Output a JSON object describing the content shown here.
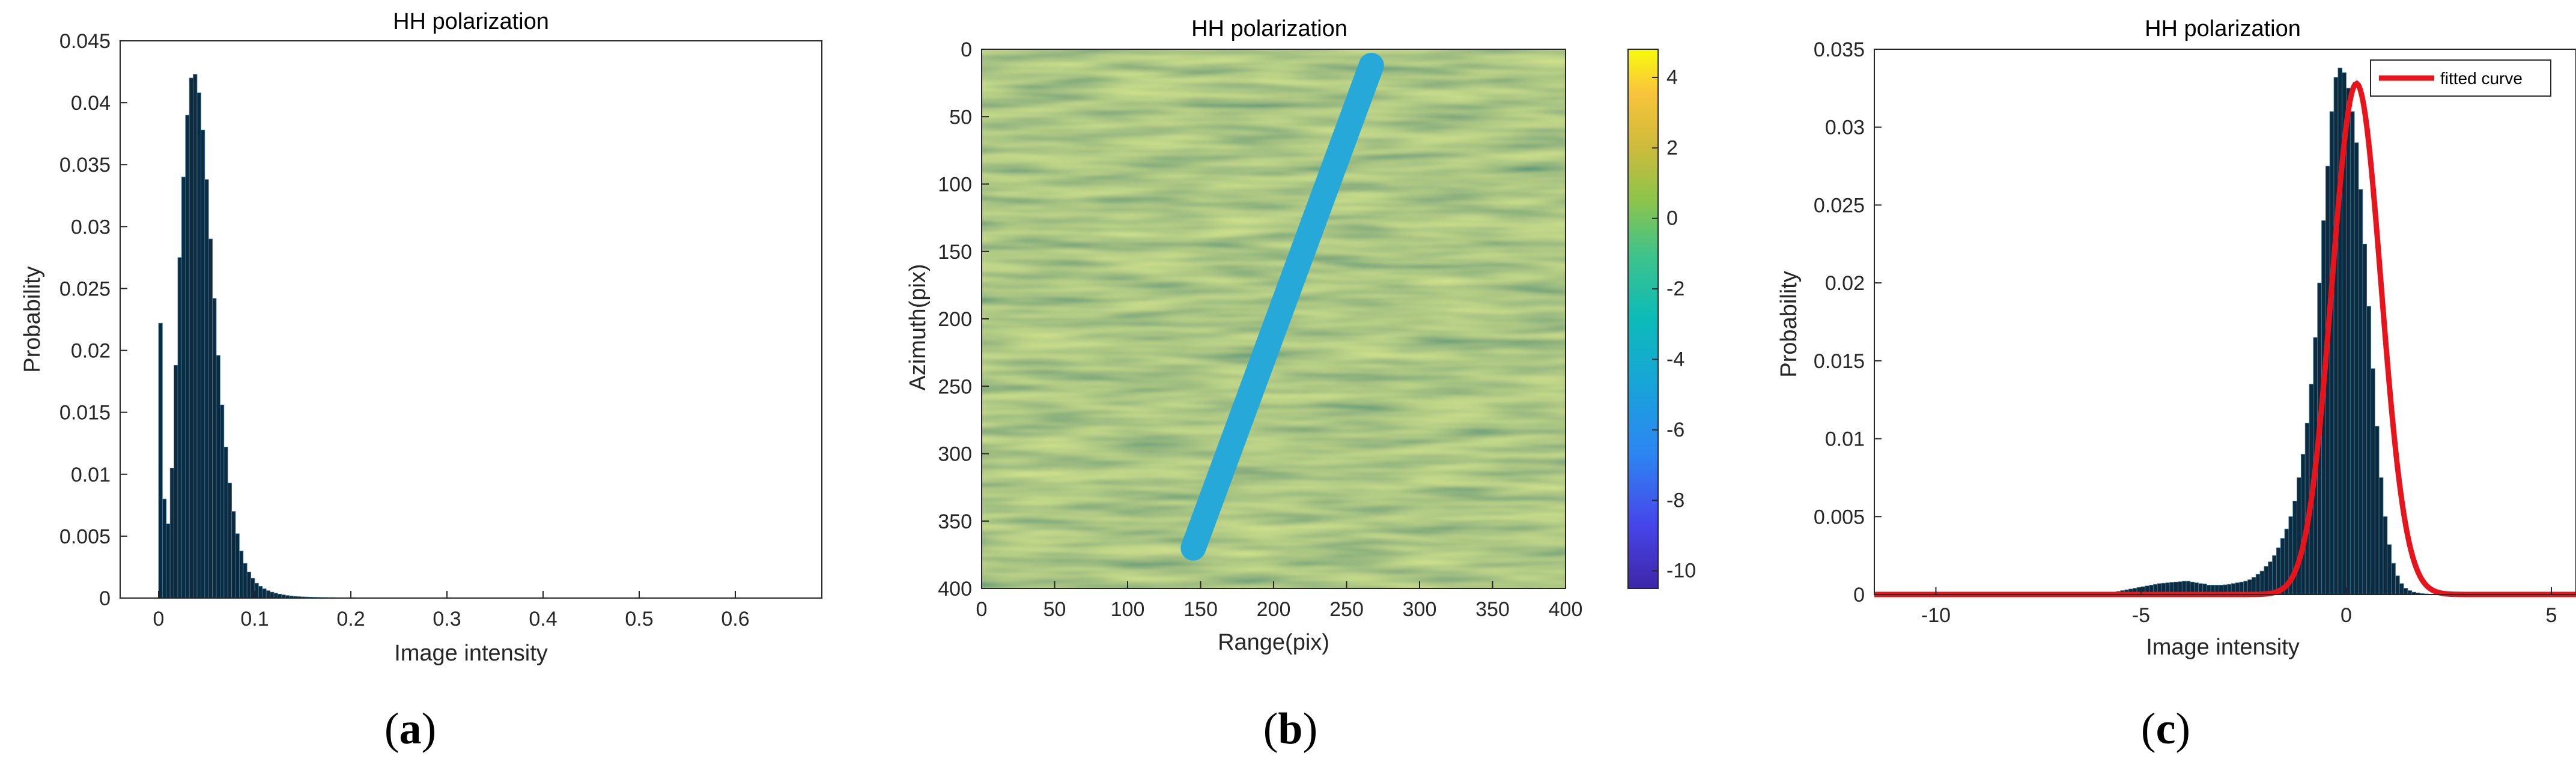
{
  "colors": {
    "bar": "#0d2a3e",
    "fit": "#e8141b",
    "axis": "#262626",
    "background": "#ffffff"
  },
  "captions": {
    "a": "a",
    "b": "b",
    "c": "c"
  },
  "chart_data": [
    {
      "id": "a",
      "type": "bar",
      "title": "HH polarization",
      "xlabel": "Image intensity",
      "ylabel": "Probability",
      "xlim": [
        -0.04,
        0.69
      ],
      "ylim": [
        0,
        0.045
      ],
      "xticks": [
        0,
        0.1,
        0.2,
        0.3,
        0.4,
        0.5,
        0.6
      ],
      "xtick_labels": [
        "0",
        "0.1",
        "0.2",
        "0.3",
        "0.4",
        "0.5",
        "0.6"
      ],
      "yticks": [
        0,
        0.005,
        0.01,
        0.015,
        0.02,
        0.025,
        0.03,
        0.035,
        0.04,
        0.045
      ],
      "ytick_labels": [
        "0",
        "0.005",
        "0.01",
        "0.015",
        "0.02",
        "0.025",
        "0.03",
        "0.035",
        "0.04",
        "0.045"
      ],
      "bin_width": 0.004,
      "bin_starts": [
        0.0,
        0.004,
        0.008,
        0.012,
        0.016,
        0.02,
        0.024,
        0.028,
        0.032,
        0.036,
        0.04,
        0.044,
        0.048,
        0.052,
        0.056,
        0.06,
        0.064,
        0.068,
        0.072,
        0.076,
        0.08,
        0.084,
        0.088,
        0.092,
        0.096,
        0.1,
        0.104,
        0.108,
        0.112,
        0.116,
        0.12,
        0.124,
        0.128,
        0.132,
        0.136,
        0.14,
        0.144,
        0.148,
        0.152,
        0.156,
        0.16,
        0.164,
        0.168,
        0.172,
        0.176,
        0.18,
        0.184,
        0.188,
        0.192,
        0.196,
        0.2,
        0.204,
        0.208,
        0.212,
        0.216,
        0.22,
        0.224,
        0.228
      ],
      "values": [
        0.0222,
        0.008,
        0.006,
        0.0105,
        0.0188,
        0.0275,
        0.034,
        0.039,
        0.042,
        0.0423,
        0.0408,
        0.0378,
        0.0338,
        0.029,
        0.0242,
        0.0196,
        0.0156,
        0.0122,
        0.0093,
        0.007,
        0.0052,
        0.0038,
        0.0028,
        0.0021,
        0.0016,
        0.0012,
        0.00095,
        0.00075,
        0.0006,
        0.00048,
        0.00039,
        0.00032,
        0.00026,
        0.00021,
        0.00017,
        0.00014,
        0.00012,
        0.0001,
        9e-05,
        8e-05,
        7e-05,
        6e-05,
        5e-05,
        5e-05,
        4e-05,
        4e-05,
        3e-05,
        3e-05,
        3e-05,
        2e-05,
        2e-05,
        2e-05,
        2e-05,
        1e-05,
        1e-05,
        1e-05,
        1e-05,
        1e-05
      ]
    },
    {
      "id": "b",
      "type": "heatmap",
      "title": "HH polarization",
      "xlabel": "Range(pix)",
      "ylabel": "Azimuth(pix)",
      "xlim": [
        0,
        400
      ],
      "ylim": [
        0,
        400
      ],
      "xticks": [
        0,
        50,
        100,
        150,
        200,
        250,
        300,
        350,
        400
      ],
      "xtick_labels": [
        "0",
        "50",
        "100",
        "150",
        "200",
        "250",
        "300",
        "350",
        "400"
      ],
      "yticks": [
        0,
        50,
        100,
        150,
        200,
        250,
        300,
        350,
        400
      ],
      "ytick_labels": [
        "0",
        "50",
        "100",
        "150",
        "200",
        "250",
        "300",
        "350",
        "400"
      ],
      "colorbar": {
        "range": [
          -10.5,
          4.8
        ],
        "ticks": [
          4,
          2,
          0,
          -2,
          -4,
          -6,
          -8,
          -10
        ],
        "tick_labels": [
          "4",
          "2",
          "0",
          "-2",
          "-4",
          "-6",
          "-8",
          "-10"
        ]
      },
      "background_value": 0,
      "annotations": [
        {
          "name": "ship-wake-track",
          "from": [
            267,
            12
          ],
          "to": [
            145,
            370
          ],
          "value": -4.2
        }
      ]
    },
    {
      "id": "c",
      "type": "bar",
      "title": "HH polarization",
      "xlabel": "Image intensity",
      "ylabel": "Probability",
      "xlim": [
        -11.5,
        5.6
      ],
      "ylim": [
        0,
        0.035
      ],
      "xticks": [
        -10,
        -5,
        0,
        5
      ],
      "xtick_labels": [
        "-10",
        "-5",
        "0",
        "5"
      ],
      "yticks": [
        0,
        0.005,
        0.01,
        0.015,
        0.02,
        0.025,
        0.03,
        0.035
      ],
      "ytick_labels": [
        "0",
        "0.005",
        "0.01",
        "0.015",
        "0.02",
        "0.025",
        "0.03",
        "0.035"
      ],
      "legend": {
        "entries": [
          "fitted curve"
        ],
        "location": "top-right"
      },
      "bin_width": 0.1,
      "bin_starts": [
        -6.0,
        -5.9,
        -5.8,
        -5.7,
        -5.6,
        -5.5,
        -5.4,
        -5.3,
        -5.2,
        -5.1,
        -5.0,
        -4.9,
        -4.8,
        -4.7,
        -4.6,
        -4.5,
        -4.4,
        -4.3,
        -4.2,
        -4.1,
        -4.0,
        -3.9,
        -3.8,
        -3.7,
        -3.6,
        -3.5,
        -3.4,
        -3.3,
        -3.2,
        -3.1,
        -3.0,
        -2.9,
        -2.8,
        -2.7,
        -2.6,
        -2.5,
        -2.4,
        -2.3,
        -2.2,
        -2.1,
        -2.0,
        -1.9,
        -1.8,
        -1.7,
        -1.6,
        -1.5,
        -1.4,
        -1.3,
        -1.2,
        -1.1,
        -1.0,
        -0.9,
        -0.8,
        -0.7,
        -0.6,
        -0.5,
        -0.4,
        -0.3,
        -0.2,
        -0.1,
        0.0,
        0.1,
        0.2,
        0.3,
        0.4,
        0.5,
        0.6,
        0.7,
        0.8,
        0.9,
        1.0,
        1.1,
        1.2,
        1.3,
        1.4,
        1.5,
        1.6,
        1.7,
        1.8,
        1.9,
        2.0,
        2.1,
        2.2,
        2.3,
        2.4,
        2.5,
        2.6,
        2.7,
        2.8,
        2.9
      ],
      "values": [
        5e-05,
        0.0001,
        0.00012,
        0.00015,
        0.0002,
        0.00025,
        0.0003,
        0.00035,
        0.0004,
        0.00045,
        0.0005,
        0.00055,
        0.0006,
        0.00065,
        0.0007,
        0.00072,
        0.00075,
        0.00078,
        0.0008,
        0.00082,
        0.00085,
        0.00085,
        0.0008,
        0.00075,
        0.0007,
        0.00068,
        0.0006,
        0.0006,
        0.0006,
        0.0006,
        0.00062,
        0.00065,
        0.0007,
        0.00075,
        0.0008,
        0.00085,
        0.00095,
        0.0011,
        0.0013,
        0.0015,
        0.0018,
        0.0021,
        0.0025,
        0.003,
        0.0036,
        0.0042,
        0.005,
        0.006,
        0.0075,
        0.009,
        0.011,
        0.0135,
        0.0165,
        0.02,
        0.024,
        0.0275,
        0.031,
        0.0332,
        0.0338,
        0.0335,
        0.0325,
        0.031,
        0.029,
        0.026,
        0.0225,
        0.0185,
        0.0145,
        0.0108,
        0.0075,
        0.005,
        0.0032,
        0.002,
        0.0012,
        0.0007,
        0.0004,
        0.00025,
        0.00015,
        0.0001,
        6e-05,
        4e-05,
        2e-05,
        1e-05,
        1e-05,
        0.0,
        0.0,
        0.0,
        0.0,
        0.0,
        0.0,
        0.0
      ],
      "fit": {
        "type": "gaussian",
        "amplitude": 0.0328,
        "mean": 0.25,
        "sigma": 0.6
      }
    }
  ]
}
